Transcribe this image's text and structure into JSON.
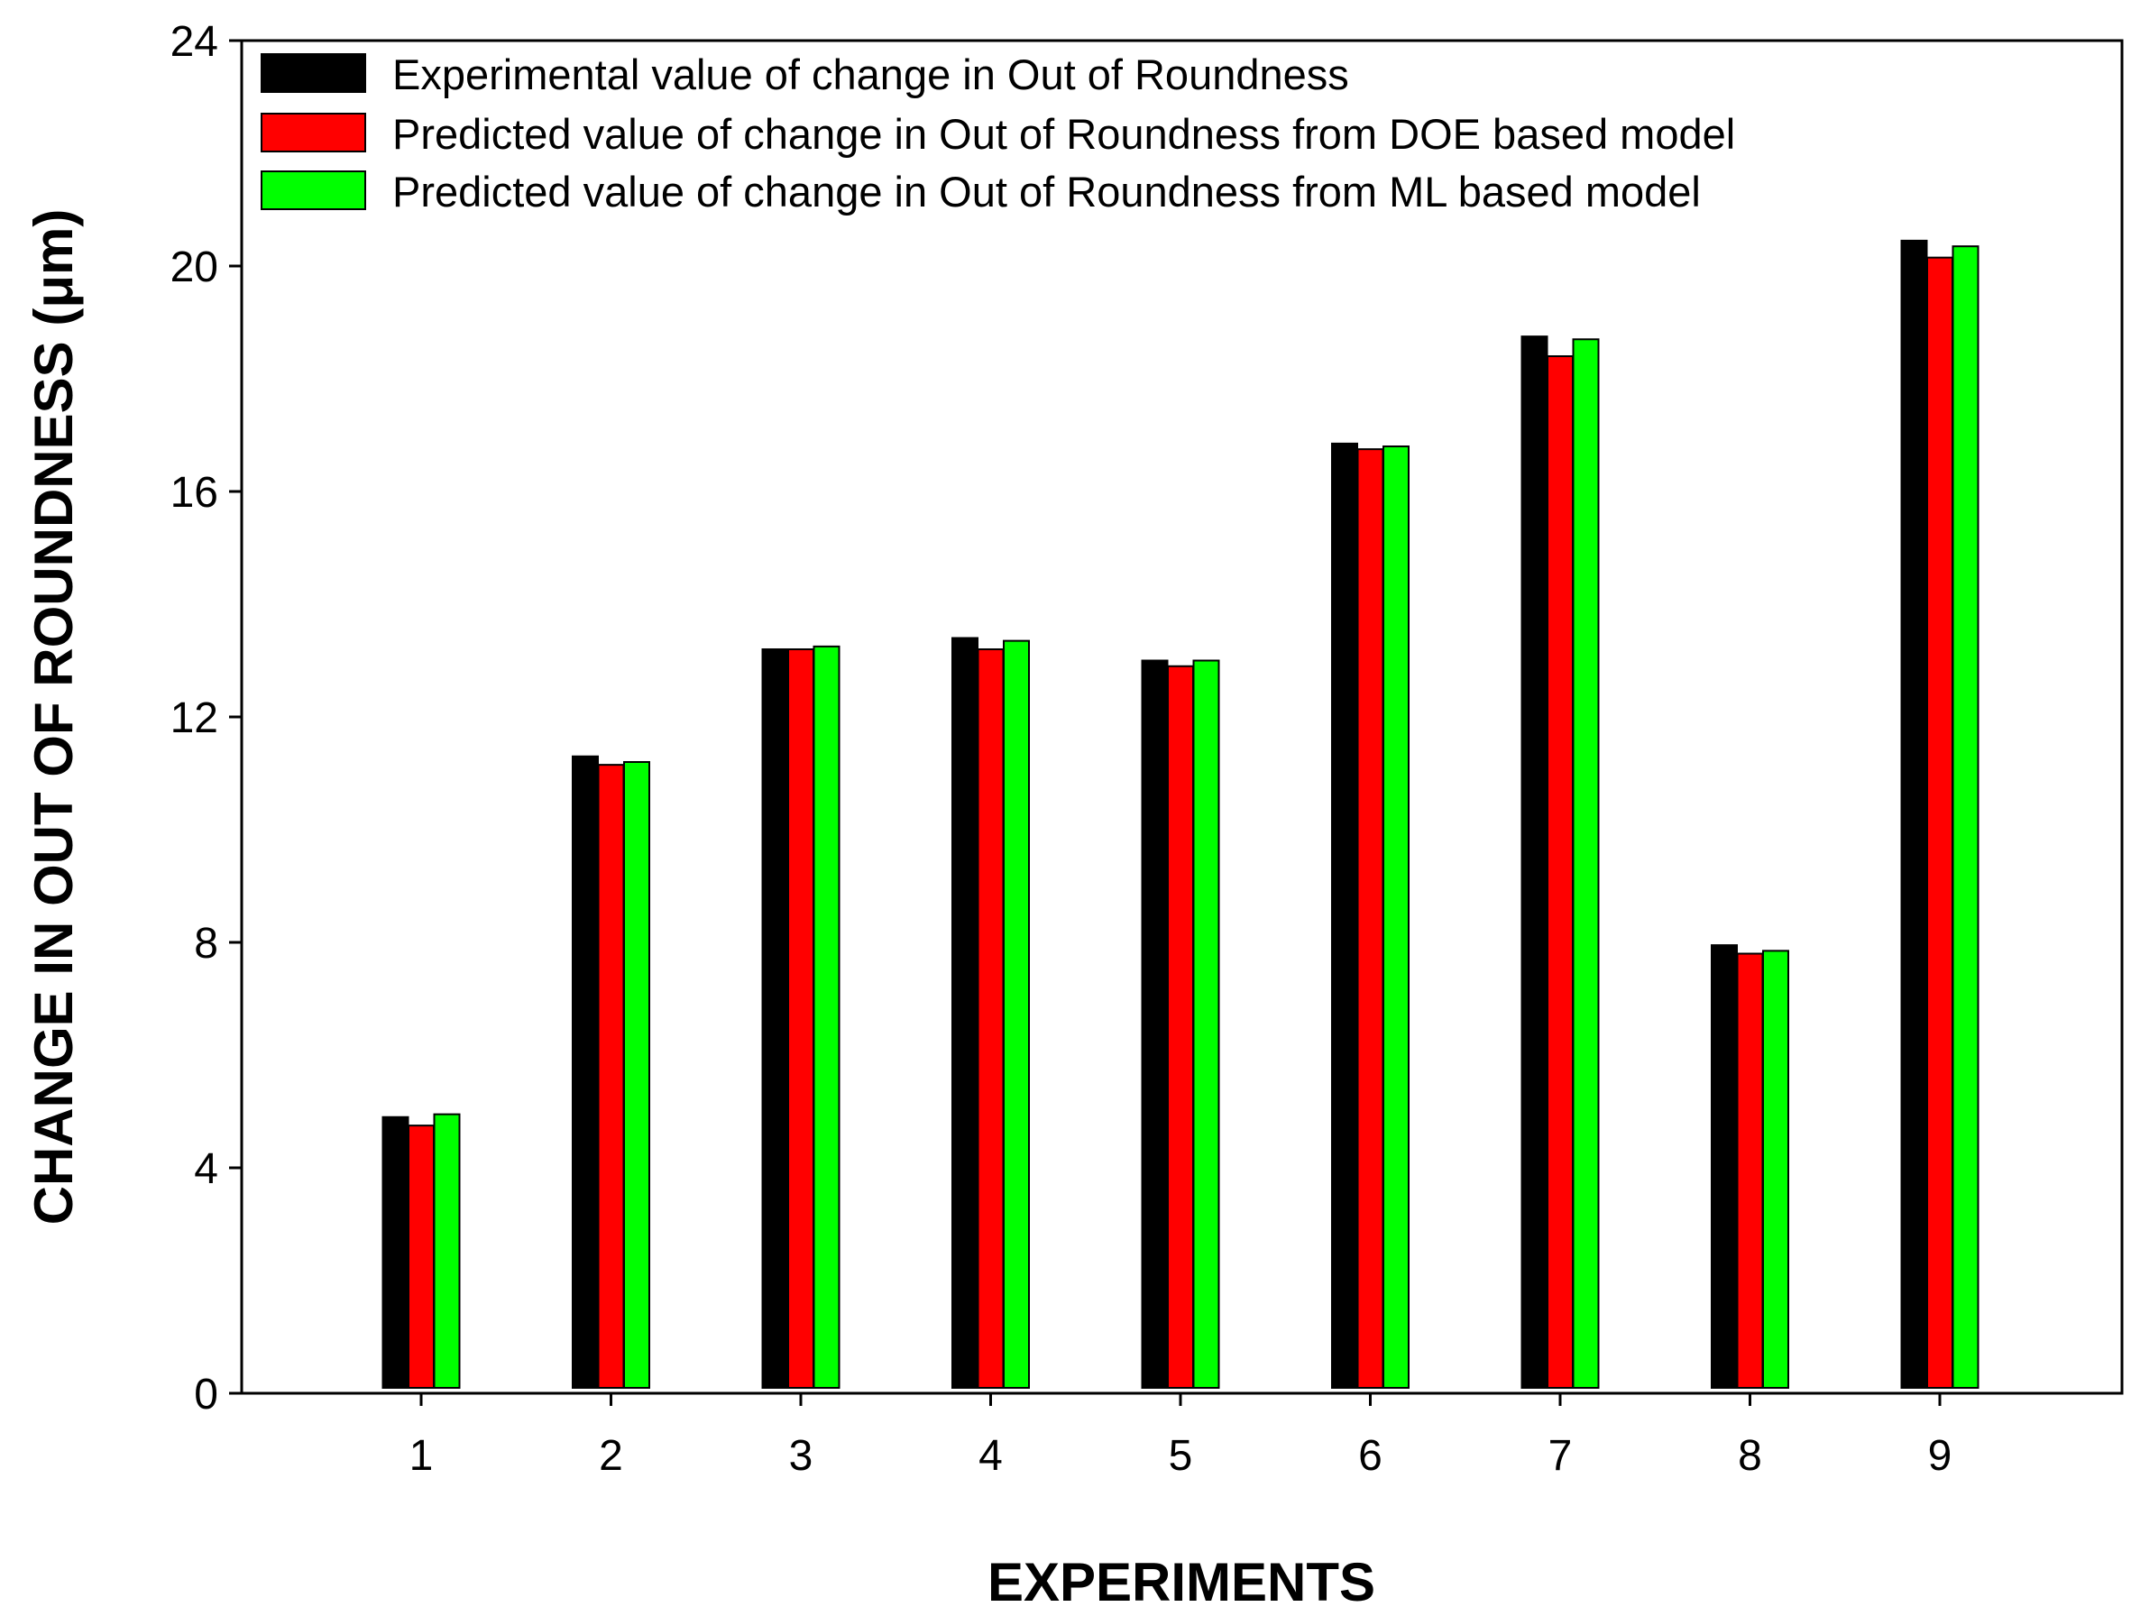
{
  "chart_data": {
    "type": "bar",
    "title": "",
    "xlabel": "EXPERIMENTS",
    "ylabel": "CHANGE IN OUT OF ROUNDNESS (μm)",
    "ylim": [
      0,
      24
    ],
    "yticks": [
      0,
      4,
      8,
      12,
      16,
      20,
      24
    ],
    "grid": false,
    "legend_position": "top-left",
    "categories": [
      "1",
      "2",
      "3",
      "4",
      "5",
      "6",
      "7",
      "8",
      "9"
    ],
    "series": [
      {
        "name": "Experimental value of change in Out of Roundness",
        "color": "#000000",
        "values": [
          4.9,
          11.3,
          13.2,
          13.4,
          13.0,
          16.85,
          18.75,
          7.95,
          20.45
        ]
      },
      {
        "name": "Predicted value of change in Out of Roundness from DOE based model",
        "color": "#ff0000",
        "values": [
          4.75,
          11.15,
          13.2,
          13.2,
          12.9,
          16.75,
          18.4,
          7.8,
          20.15
        ]
      },
      {
        "name": "Predicted value of change in Out of Roundness from ML based model",
        "color": "#00ff00",
        "values": [
          4.95,
          11.2,
          13.25,
          13.35,
          13.0,
          16.8,
          18.7,
          7.85,
          20.35
        ]
      }
    ]
  }
}
